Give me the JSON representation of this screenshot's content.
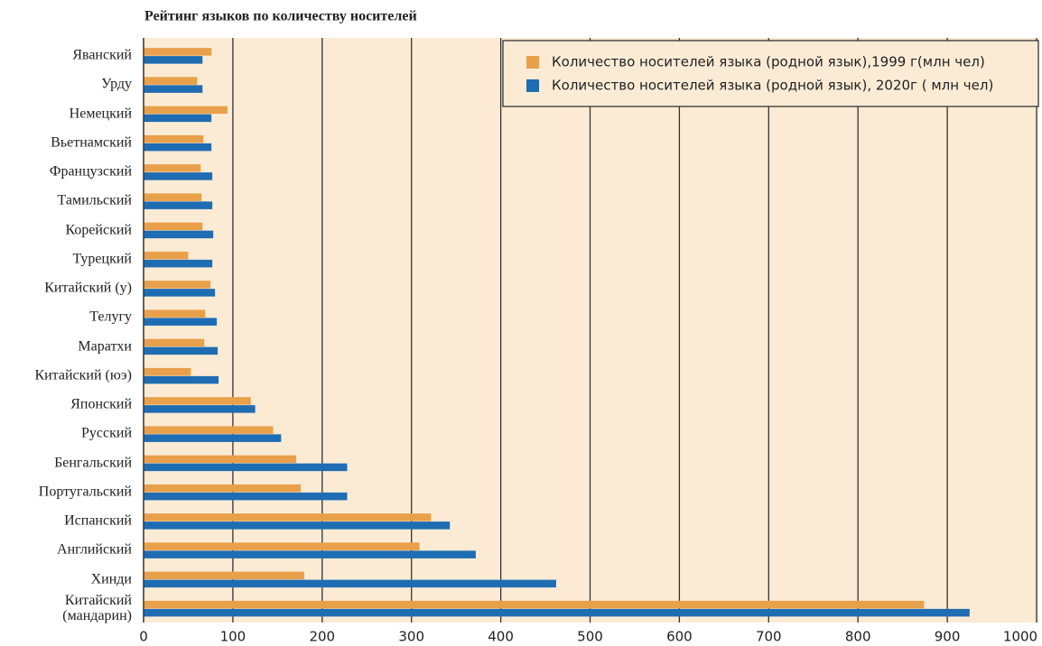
{
  "chart_data": {
    "type": "hbar",
    "title": "Рейтинг языков по количеству носителей",
    "categories": [
      "Яванский",
      "Урду",
      "Немецкий",
      "Вьетнамский",
      "Французский",
      "Тамильский",
      "Корейский",
      "Турецкий",
      "Китайский (у)",
      "Телугу",
      "Маратхи",
      "Китайский (юэ)",
      "Японский",
      "Русский",
      "Бенгальский",
      "Португальский",
      "Испанский",
      "Английский",
      "Хинди",
      "Китайский (мандарин)"
    ],
    "series": [
      {
        "name": "Количество носителей языка (родной язык),1999 г(млн чел)",
        "color": "#e9a04b",
        "values": [
          76,
          60,
          94,
          67,
          64,
          65,
          66,
          50,
          75,
          69,
          68,
          53,
          120,
          145,
          171,
          176,
          322,
          309,
          180,
          874
        ]
      },
      {
        "name": "Количество носителей языка (родной язык), 2020г ( млн чел)",
        "color": "#1e6db3",
        "values": [
          66,
          66,
          76,
          76,
          77,
          77,
          78,
          77,
          80,
          82,
          83,
          84,
          125,
          154,
          228,
          228,
          343,
          372,
          462,
          925
        ]
      }
    ],
    "xlim": [
      0,
      1000
    ],
    "xticks": [
      0,
      100,
      200,
      300,
      400,
      500,
      600,
      700,
      800,
      900,
      1000
    ],
    "grid": true,
    "legend": "top-right"
  }
}
